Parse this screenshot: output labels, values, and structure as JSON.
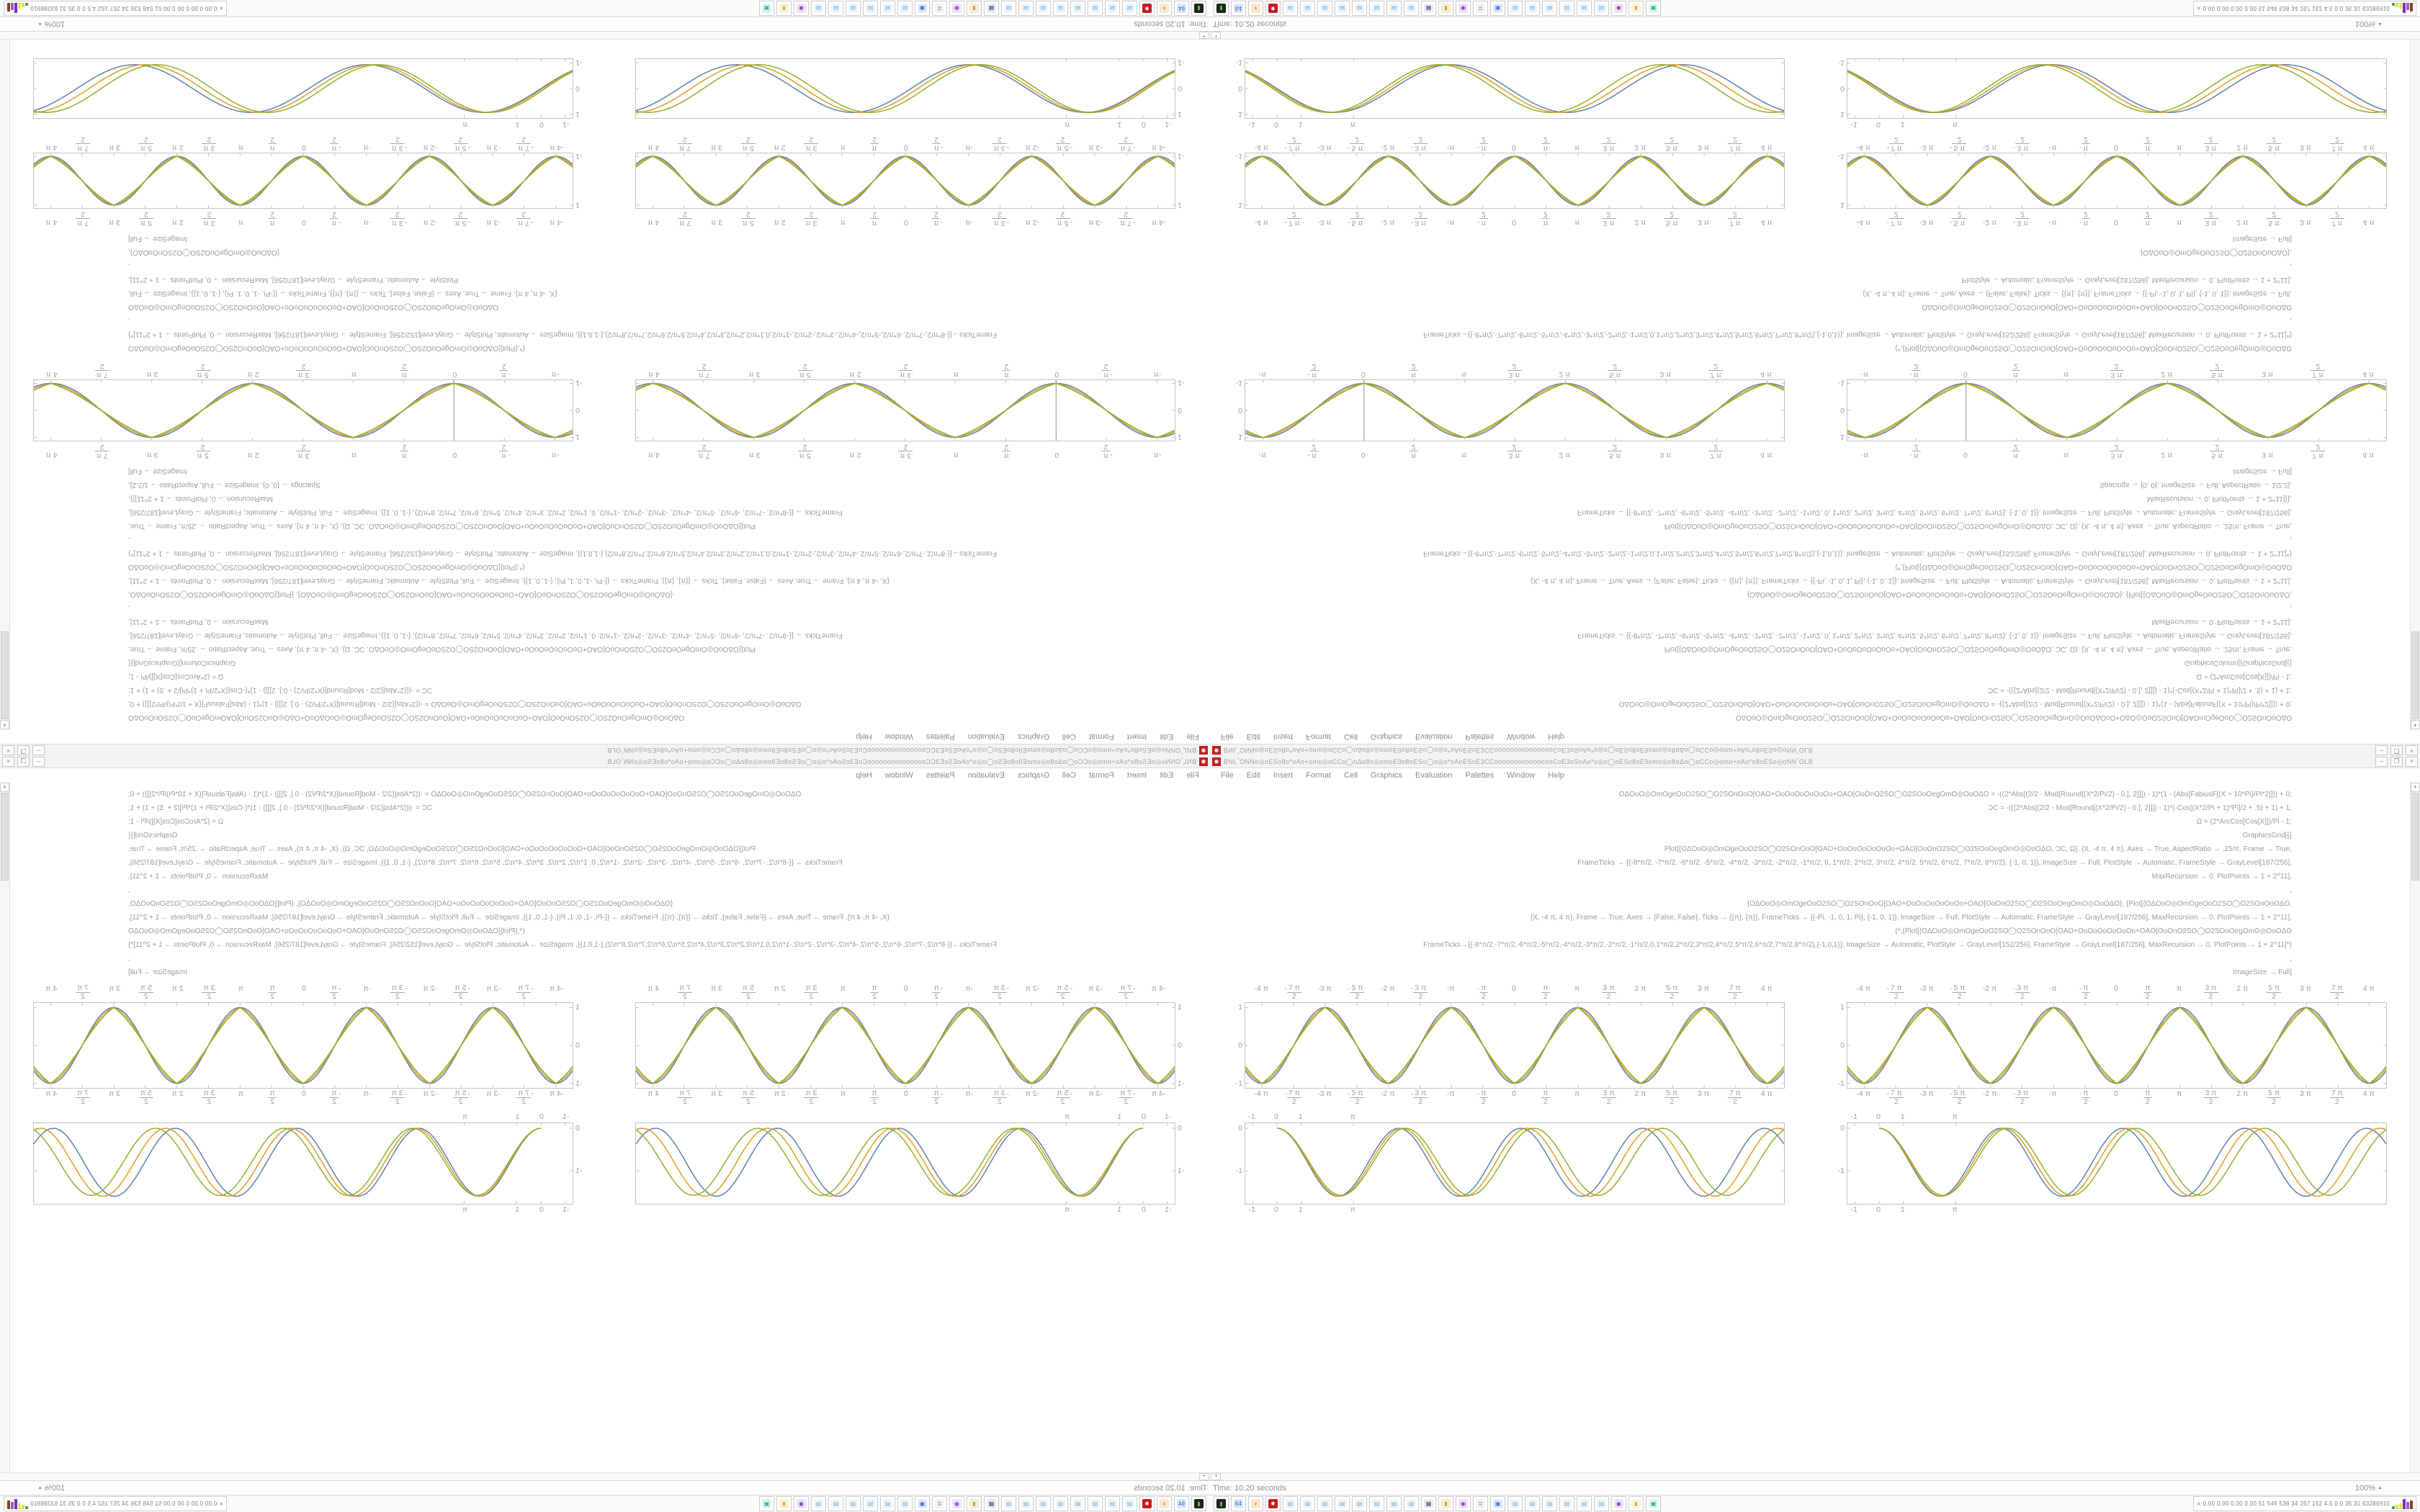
{
  "window_controls": {
    "minimize": "–",
    "restore": "❐",
    "close": "×"
  },
  "menu": {
    "items": [
      {
        "label": "File"
      },
      {
        "label": "Edit"
      },
      {
        "label": "Insert"
      },
      {
        "label": "Format"
      },
      {
        "label": "Cell"
      },
      {
        "label": "Graphics"
      },
      {
        "label": "Evaluation"
      },
      {
        "label": "Palettes"
      },
      {
        "label": "Window"
      },
      {
        "label": "Help"
      }
    ]
  },
  "status": {
    "back_glyph": "◂",
    "time_label": "Time: 10.20 seconds",
    "zoom_label": "100%",
    "zoom_caret": "▲",
    "vscroll_up": "▴"
  },
  "taskbar": {
    "buttons": [
      {
        "name": "terminal",
        "glyph": "▮",
        "color": "#57b947",
        "bg": "#1d231d"
      },
      {
        "name": "disk-64",
        "glyph": "64",
        "color": "#2b5fb4",
        "bg": "#dce8f8"
      },
      {
        "name": "firefox",
        "glyph": "◗",
        "color": "#e8641a",
        "bg": "#fde8cd"
      },
      {
        "name": "mathematica",
        "glyph": "✹",
        "color": "#ffffff",
        "bg": "#c81b1b"
      },
      {
        "name": "notebook",
        "glyph": "▤",
        "color": "#7fb2d8",
        "bg": "#eef6fc"
      },
      {
        "name": "notebook",
        "glyph": "▤",
        "color": "#7fb2d8",
        "bg": "#eef6fc"
      },
      {
        "name": "notebook",
        "glyph": "▤",
        "color": "#7fb2d8",
        "bg": "#eef6fc"
      },
      {
        "name": "notebook",
        "glyph": "▤",
        "color": "#7fb2d8",
        "bg": "#eef6fc"
      },
      {
        "name": "notebook",
        "glyph": "▤",
        "color": "#7fb2d8",
        "bg": "#eef6fc"
      },
      {
        "name": "notebook",
        "glyph": "▤",
        "color": "#7fb2d8",
        "bg": "#eef6fc"
      },
      {
        "name": "notebook",
        "glyph": "▤",
        "color": "#7fb2d8",
        "bg": "#eef6fc"
      },
      {
        "name": "notebook",
        "glyph": "▤",
        "color": "#7fb2d8",
        "bg": "#eef6fc"
      },
      {
        "name": "display",
        "glyph": "▦",
        "color": "#49597a",
        "bg": "#e8ecf4"
      },
      {
        "name": "folder",
        "glyph": "▮",
        "color": "#d9a53f",
        "bg": "#f8edd2"
      },
      {
        "name": "owl",
        "glyph": "◉",
        "color": "#8a3fb5",
        "bg": "#f0e0fa"
      },
      {
        "name": "scroll",
        "glyph": "≣",
        "color": "#8a8a8a",
        "bg": "#f3f3f3"
      },
      {
        "name": "window-blue",
        "glyph": "▣",
        "color": "#3a6fd8",
        "bg": "#e4ecfa"
      },
      {
        "name": "notebook",
        "glyph": "▤",
        "color": "#7fb2d8",
        "bg": "#eef6fc"
      },
      {
        "name": "notebook",
        "glyph": "▤",
        "color": "#7fb2d8",
        "bg": "#eef6fc"
      },
      {
        "name": "notebook",
        "glyph": "▤",
        "color": "#7fb2d8",
        "bg": "#eef6fc"
      },
      {
        "name": "notebook",
        "glyph": "▤",
        "color": "#7fb2d8",
        "bg": "#eef6fc"
      },
      {
        "name": "notebook",
        "glyph": "▤",
        "color": "#7fb2d8",
        "bg": "#eef6fc"
      },
      {
        "name": "notebook",
        "glyph": "▤",
        "color": "#7fb2d8",
        "bg": "#eef6fc"
      },
      {
        "name": "masks",
        "glyph": "◉",
        "color": "#7a3fa0",
        "bg": "#efe2f8"
      },
      {
        "name": "book-yellow",
        "glyph": "▮",
        "color": "#e0b23f",
        "bg": "#faf2d8"
      },
      {
        "name": "teal-app",
        "glyph": "▣",
        "color": "#2aa9a0",
        "bg": "#def4f2"
      }
    ],
    "applet": {
      "caret": "∧",
      "text": "0.00 0.00 0.00 0.00  51  546 536  34  257 152  4.5  0.0  35  31  63286910",
      "bars": [
        {
          "color": "#49a942",
          "h": 4
        },
        {
          "color": "#cfe84a",
          "h": 6
        },
        {
          "color": "#e8e84a",
          "h": 8
        },
        {
          "color": "#7b2fbe",
          "h": 14
        },
        {
          "color": "#9a5fd0",
          "h": 10
        },
        {
          "color": "#8a4513",
          "h": 12
        }
      ]
    }
  },
  "tick_sets": {
    "pi": [
      {
        "v": -12.566,
        "label": "-4 π"
      },
      {
        "v": -10.996,
        "num": "7 π",
        "den": "2",
        "neg": true
      },
      {
        "v": -9.425,
        "label": "-3 π"
      },
      {
        "v": -7.854,
        "num": "5 π",
        "den": "2",
        "neg": true
      },
      {
        "v": -6.283,
        "label": "-2 π"
      },
      {
        "v": -4.712,
        "num": "3 π",
        "den": "2",
        "neg": true
      },
      {
        "v": -3.142,
        "label": "-π"
      },
      {
        "v": -1.571,
        "num": "π",
        "den": "2",
        "neg": true
      },
      {
        "v": 0,
        "label": "0"
      },
      {
        "v": 1.571,
        "num": "π",
        "den": "2"
      },
      {
        "v": 3.142,
        "label": "π"
      },
      {
        "v": 4.712,
        "num": "3 π",
        "den": "2"
      },
      {
        "v": 6.283,
        "label": "2 π"
      },
      {
        "v": 7.854,
        "num": "5 π",
        "den": "2"
      },
      {
        "v": 9.425,
        "label": "3 π"
      },
      {
        "v": 10.996,
        "num": "7 π",
        "den": "2"
      },
      {
        "v": 12.566,
        "label": "4 π"
      }
    ],
    "unit": [
      {
        "v": -1,
        "label": "-1"
      },
      {
        "v": 0,
        "label": "0"
      },
      {
        "v": 1,
        "label": "1"
      },
      {
        "v": 3.142,
        "label": "π"
      }
    ]
  },
  "chart_data": [
    {
      "id": "b1",
      "type": "line",
      "title": "",
      "xlabel": "",
      "ylabel": "",
      "x_range": [
        -13.4,
        13.4
      ],
      "y_range": [
        -1.12,
        1.12
      ],
      "frame": true,
      "axes": false,
      "frame_h": 118,
      "xticks": "pi",
      "xtick_style": "frac",
      "top_ticks": true,
      "bottom_ticks": true,
      "yticks": [
        {
          "v": 1,
          "label": "1"
        },
        {
          "v": 0,
          "label": "0"
        },
        {
          "v": -1,
          "label": "-1"
        }
      ],
      "legend": "none",
      "grid": false,
      "series": [
        {
          "name": "Plot expression",
          "color": "#5E81B5",
          "shape": "blend",
          "b": 1.0
        },
        {
          "name": "ƆC",
          "color": "#E19C24",
          "shape": "blend",
          "b": 0.7
        },
        {
          "name": "Ω",
          "color": "#8FB032",
          "shape": "blend",
          "b": 0.42
        }
      ]
    },
    {
      "id": "b2",
      "type": "line",
      "title": "",
      "xlabel": "",
      "ylabel": "",
      "x_range": [
        -1.3,
        20.8
      ],
      "y_range": [
        -1.78,
        0.12
      ],
      "frame": true,
      "axes": false,
      "frame_h": 112,
      "xticks": "unit",
      "xtick_style": "plain",
      "top_ticks": true,
      "bottom_ticks": true,
      "yticks": [
        {
          "v": 0,
          "label": "0"
        },
        {
          "v": -1,
          "label": "-1"
        }
      ],
      "legend": "none",
      "grid": false,
      "series": [
        {
          "name": "Plot expression",
          "color": "#5E81B5",
          "shape": "osc",
          "period": 5.0,
          "amp": 0.8
        },
        {
          "name": "ƆC",
          "color": "#E19C24",
          "shape": "osc",
          "period": 5.13,
          "amp": 0.8
        },
        {
          "name": "Ω",
          "color": "#8FB032",
          "shape": "osc",
          "period": 5.27,
          "amp": 0.79
        }
      ]
    },
    {
      "id": "t1",
      "type": "line",
      "title": "",
      "xlabel": "",
      "ylabel": "",
      "x_range": [
        -3.7,
        13.1
      ],
      "y_range": [
        -1.12,
        1.12
      ],
      "frame": true,
      "axes": true,
      "frame_h": 84,
      "xticks": "pi",
      "xtick_style": "frac",
      "top_ticks": true,
      "bottom_ticks": true,
      "yticks": [
        {
          "v": 1,
          "label": "1"
        },
        {
          "v": 0,
          "label": "0"
        },
        {
          "v": -1,
          "label": "-1"
        }
      ],
      "legend": "none",
      "grid": false,
      "series": [
        {
          "name": "Plot expression",
          "color": "#5E81B5",
          "shape": "blend",
          "b": 1.0
        },
        {
          "name": "ƆC",
          "color": "#E19C24",
          "shape": "blend",
          "b": 0.7
        },
        {
          "name": "Ω",
          "color": "#8FB032",
          "shape": "blend",
          "b": 0.42
        }
      ]
    },
    {
      "id": "t2",
      "type": "line",
      "title": "",
      "xlabel": "",
      "ylabel": "",
      "x_range": [
        -13.4,
        13.4
      ],
      "y_range": [
        -1.12,
        1.12
      ],
      "frame": true,
      "axes": false,
      "frame_h": 76,
      "xticks": "pi",
      "xtick_style": "frac",
      "top_ticks": true,
      "bottom_ticks": true,
      "yticks": [
        {
          "v": 1,
          "label": "1"
        },
        {
          "v": -1,
          "label": "-1"
        }
      ],
      "legend": "none",
      "grid": false,
      "series": [
        {
          "name": "Plot expression",
          "color": "#5E81B5",
          "shape": "blend",
          "b": 1.0
        },
        {
          "name": "ƆC",
          "color": "#E19C24",
          "shape": "blend",
          "b": 0.7
        },
        {
          "name": "Ω",
          "color": "#8FB032",
          "shape": "blend",
          "b": 0.42
        }
      ]
    },
    {
      "id": "t3",
      "type": "line",
      "title": "",
      "xlabel": "",
      "ylabel": "",
      "x_range": [
        -1.3,
        20.8
      ],
      "y_range": [
        -1.15,
        1.15
      ],
      "frame": true,
      "axes": false,
      "frame_h": 82,
      "xticks": "unit",
      "xtick_style": "plain",
      "top_ticks": true,
      "bottom_ticks": false,
      "yticks": [
        {
          "v": 1,
          "label": "1"
        },
        {
          "v": 0,
          "label": "0"
        },
        {
          "v": -1,
          "label": "-1"
        }
      ],
      "legend": "none",
      "grid": false,
      "series": [
        {
          "name": "Plot expression",
          "color": "#5E81B5",
          "shape": "sine",
          "k": 0.66,
          "ph": 0.0,
          "amp": 0.93
        },
        {
          "name": "ƆC",
          "color": "#E19C24",
          "shape": "sine",
          "k": 0.675,
          "ph": 0.05,
          "amp": 0.93
        },
        {
          "name": "Ω",
          "color": "#8FB032",
          "shape": "sine",
          "k": 0.69,
          "ph": 0.12,
          "amp": 0.93
        }
      ]
    }
  ],
  "notebooks": {
    "t": {
      "window_title": "BNL‾ONNo◎oESo8o*oAo+omo◎oCCo◯oΔo8o◎omoE9o8oESo◯o◎o*oAoESoE3CCoooooooooooooooCoE3oSoAo*o◎o◯oESo8oE9omo◎o8oΔo◯oCCo◎omo+oAo*o8oESo◎oNN‾OLB",
      "sections": [
        {
          "type": "code",
          "lines": "code_a"
        },
        {
          "type": "plots",
          "charts": [
            "t1",
            "t1"
          ]
        },
        {
          "type": "code",
          "lines": "code_b"
        },
        {
          "type": "plots",
          "charts": [
            "t2",
            "t2"
          ]
        },
        {
          "type": "plots",
          "charts": [
            "t3",
            "t3"
          ]
        }
      ],
      "code_a": [
        "OΔOoO◎OmOgeOoO2SO◯O2SOnOoO[OAO+OoOoOoOoOoOo+OAO[OoOnO2SO◯O2SOoOegOmO◎OoOΔOoO+OΔO◎OoO2SOnO[OAOmOgeOoO◯O2SOnOoOΔO",
        "OΔOoO◎OmOgeOoO2SO◯O2SOnOoO[OAO+OoOoOoOoOoOo+OAO[OoOnO2SO◯O2SOoOegOmO◎OoOΔO = -((2*Abs[(2/2 - Mod[Round[(X*2/Pi/2) - 0.], 2]]]) - 1)*(1 - (Abs[FabiusF[(X + 10*Pi)/Pi*2]])) + 0;",
        "ƆC = -(((2*Abs[(2/2 - Mod[Round[(X*2/Pi/2) - 0.], 2]]]) - 1)*(-Cos[(X*2/Pi + 1)*Pi]/2 + .5) + 1) + 1;",
        "Ω = (2*ArcCos[Cos[X]])/Pi - 1;",
        "GraphicsColumn[{GraphicsGrid[{{",
        "Plot[{OΔOoO◎OmOgeOoO2SO◯O2SOnOoO[OAO+OoOoOoOoOoOo+OAO[OoOnO2SO◯O2SOoOegOmO◎OoOΔO, ƆC, Ω}, {X, -4 π, 4 π}, Axes → True, AspectRatio → .25/π, Frame → True,",
        "FrameTicks → {{-8*π/2, -7*π/2, -6*π/2, -5*π/2, -4*π/2, -3*π/2, -2*π/2, -1*π/2, 0, 1*π/2, 2*π/2, 3*π/2, 4*π/2, 5*π/2, 6*π/2, 7*π/2, 8*π/2}, {-1, 0, 1}}, ImageSize → Full, PlotStyle → Automatic, FrameStyle → GrayLevel[187/256],",
        "MaxRecursion → 0, PlotPoints → 1 + 2^11],",
        ",",
        "{OΔOoO◎OmOgeOoO2SO◯O2SOnOoO[OAO+OoOoOoOoOoOo+OAO[OoOnO2SO◯O2SOoOegOmO◎OoOΔO}, {Plot[{OΔOoO◎OmOgeOoO2SO◯O2SOnOoOΔO,",
        "{X, -4 π, 4 π}, Frame → True, Axes → {False, False}, Ticks → {{π}, {π}}, FrameTicks → {{-Pi, -1, 0, 1, Pi}, {-1, 0, 1}}, ImageSize → Full, PlotStyle → Automatic, FrameStyle → GrayLevel[187/256], MaxRecursion → 0, PlotPoints → 1 + 2^11],",
        "(*,{Plot[{OΔOoO◎OmOgeOoO2SO◯O2SOnOoO[OAO+OoOoOoOoOoOo+OAO[OoOnO2SO◯O2SOoOegOmO◎OoOΔO",
        "FrameTicks→{{-8*π/2,-7*π/2,-6*π/2,-5*π/2,-4*π/2,-3*π/2,-2*π/2,-1*π/2,0,1*π/2,2*π/2,3*π/2,4*π/2,5*π/2,6*π/2,7*π/2,8*π/2},{-1,0,1}}, ImageSize → Automatic, PlotStyle → GrayLevel[152/256], FrameStyle → GrayLevel[187/256], MaxRecursion → 0, PlotPoints → 1 + 2^11]*)",
        ",",
        "Plot[{OΔOoO◎OmOgeOoO2SO◯O2SOnOoO[OAO+OoOoOoOoOoOo+OAO[OoOnO2SO◯O2SOoOegOmO◎OoOΔO, ƆC, Ω}, {X, -4 π, 4 π}, Axes → True, AspectRatio → .25/π, Frame → True,",
        "FrameTicks → {{-8*π/2, -7*π/2, -6*π/2, -5*π/2, -4*π/2, -3*π/2, -2*π/2, -1*π/2, 0, 1*π/2, 2*π/2, 3*π/2, 4*π/2, 5*π/2, 6*π/2, 7*π/2, 8*π/2}, {-1, 0, 1}}, ImageSize → Full, PlotStyle → Automatic, FrameStyle → GrayLevel[187/256],",
        "MaxRecursion → 0, PlotPoints → 1 + 2^11]}},",
        "Spacings → {0, 0}, ImageSize → Full, AspectRatio → 1/2.2],",
        "ImageSize → Full]"
      ],
      "code_b": [
        "(*,{Plot[{OΔOoO◎OmOgeOoO2SO◯O2SOnOoO[OAO+OoOoOoOoOoOo+OAO[OoOnO2SO◯O2SOoOegOmO◎OoOΔO",
        "FrameTicks→{{-8*π/2,-7*π/2,-6*π/2,-5*π/2,-4*π/2,-3*π/2,-2*π/2,-1*π/2,0,1*π/2,2*π/2,3*π/2,4*π/2,5*π/2,6*π/2,7*π/2,8*π/2},{-1,0,1}}, ImageSize → Automatic, PlotStyle → GrayLevel[152/256], FrameStyle → GrayLevel[187/256], MaxRecursion → 0, PlotPoints → 1 + 2^11]*)",
        ",",
        "OΔOoO◎OmOgeOoO2SO◯O2SOnOoO[OAO+OoOoOoOoOoOo+OAO[OoOnO2SO◯O2SOoOegOmO◎OoOΔO",
        "{X, -4 π, 4 π}, Frame → True, Axes → {False, False}, Ticks → {{π}, {π}}, FrameTicks → {{-Pi, -1, 0, 1, Pi}, {-1, 0, 1}}, ImageSize → Full,",
        "PlotStyle → Automatic, FrameStyle → GrayLevel[187/256], MaxRecursion → 0, PlotPoints → 1 + 2^11],",
        ",",
        "{OΔOoO◎OmOgeOoO2SO◯O2SOnOoOΔO},",
        "ImageSize → Full]"
      ]
    },
    "b": {
      "window_title": "BNL‾ONNo◎oESo8o*oAo+omo◎oCCo◯oΔo8o◎omoE9o8oESo◯o◎o*oAoESoE3CCoooooooooooooooCoE3oSoAo*o◎o◯oESo8oE9omo◎o8oΔo◯oCCo◎omo+oAo*o8oESo◎oNN‾OLB",
      "sections": [
        {
          "type": "code",
          "lines": "code_main"
        },
        {
          "type": "plots",
          "charts": [
            "b1",
            "b1"
          ]
        },
        {
          "type": "plots",
          "charts": [
            "b2",
            "b2"
          ]
        }
      ],
      "code_main": [
        "OΔOoO◎OmOgeOoO2SO◯O2SOnOoO[OAO+OoOoOoOoOoOo+OAO[OoOnO2SO◯O2SOoOegOmO◎OoOΔO = -((2*Abs[(2/2 - Mod[Round[(X*2/Pi/2) - 0.], 2]]]) - 1)*(1 - (Abs[FabiusF[(X + 10*Pi)/Pi*2]])) + 0;",
        "ƆC = -(((2*Abs[(2/2 - Mod[Round[(X*2/Pi/2) - 0.], 2]]]) - 1)*(-Cos[(X*2/Pi + 1)*Pi]/2 + .5) + 1) + 1;",
        "Ω = (2*ArcCos[Cos[X]])/Pi - 1;",
        "GraphicsGrid[{{",
        "Plot[{OΔOoO◎OmOgeOoO2SO◯O2SOnOoO[OAO+OoOoOoOoOoOo+OAO[OoOnO2SO◯O2SOoOegOmO◎OoOΔO, ƆC, Ω}, {X, -4 π, 4 π}, Axes → True, AspectRatio → .25/π, Frame → True,",
        "FrameTicks → {{-8*π/2, -7*π/2, -6*π/2, -5*π/2, -4*π/2, -3*π/2, -2*π/2, -1*π/2, 0, 1*π/2, 2*π/2, 3*π/2, 4*π/2, 5*π/2, 6*π/2, 7*π/2, 8*π/2}, {-1, 0, 1}}, ImageSize → Full, PlotStyle → Automatic, FrameStyle → GrayLevel[187/256],",
        "MaxRecursion → 0, PlotPoints → 1 + 2^11],",
        ",",
        "{OΔOoO◎OmOgeOoO2SO◯O2SOnOoO[OAO+OoOoOoOoOoOo+OAO[OoOnO2SO◯O2SOoOegOmO◎OoOΔO}, {Plot[{OΔOoO◎OmOgeOoO2SO◯O2SOnOoOΔO,",
        "{X, -4 π, 4 π}, Frame → True, Axes → {False, False}, Ticks → {{π}, {π}}, FrameTicks → {{-Pi, -1, 0, 1, Pi}, {-1, 0, 1}}, ImageSize → Full, PlotStyle → Automatic, FrameStyle → GrayLevel[187/256], MaxRecursion → 0, PlotPoints → 1 + 2^11],",
        "(*,{Plot[{OΔOoO◎OmOgeOoO2SO◯O2SOnOoO[OAO+OoOoOoOoOoOo+OAO[OoOnO2SO◯O2SOoOegOmO◎OoOΔO",
        "FrameTicks→{{-8*π/2,-7*π/2,-6*π/2,-5*π/2,-4*π/2,-3*π/2,-2*π/2,-1*π/2,0,1*π/2,2*π/2,3*π/2,4*π/2,5*π/2,6*π/2,7*π/2,8*π/2},{-1,0,1}}, ImageSize → Automatic, PlotStyle → GrayLevel[152/256], FrameStyle → GrayLevel[187/256], MaxRecursion → 0, PlotPoints → 1 + 2^11]*)",
        ",",
        "ImageSize → Full]"
      ]
    }
  }
}
